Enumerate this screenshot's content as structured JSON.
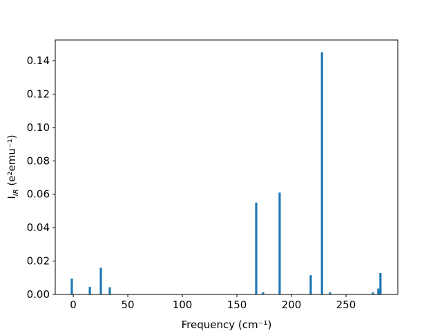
{
  "chart_data": {
    "type": "bar",
    "x_label": "Frequency (cm⁻¹)",
    "y_label": {
      "main": "I",
      "sub": "IR",
      "rest": " (e²emu⁻¹)"
    },
    "x": [
      -1.3,
      15.2,
      25.3,
      33.5,
      167.7,
      174,
      189.2,
      217.7,
      228,
      235.4,
      274.7,
      279.7,
      281.6
    ],
    "values": [
      0.0095,
      0.0045,
      0.016,
      0.0043,
      0.055,
      0.0013,
      0.061,
      0.0115,
      0.145,
      0.0013,
      0.0012,
      0.0035,
      0.0128
    ],
    "color": "#1f77b4",
    "xlim": [
      -16.5,
      297.5
    ],
    "ylim": [
      0,
      0.1524
    ],
    "xticks": [
      0,
      50,
      100,
      150,
      200,
      250
    ],
    "yticks": [
      {
        "value": 0,
        "label": "0.00"
      },
      {
        "value": 0.02,
        "label": "0.02"
      },
      {
        "value": 0.04,
        "label": "0.04"
      },
      {
        "value": 0.06,
        "label": "0.06"
      },
      {
        "value": 0.08,
        "label": "0.08"
      },
      {
        "value": 0.1,
        "label": "0.10"
      },
      {
        "value": 0.12,
        "label": "0.12"
      },
      {
        "value": 0.14,
        "label": "0.14"
      }
    ],
    "grid": false
  }
}
